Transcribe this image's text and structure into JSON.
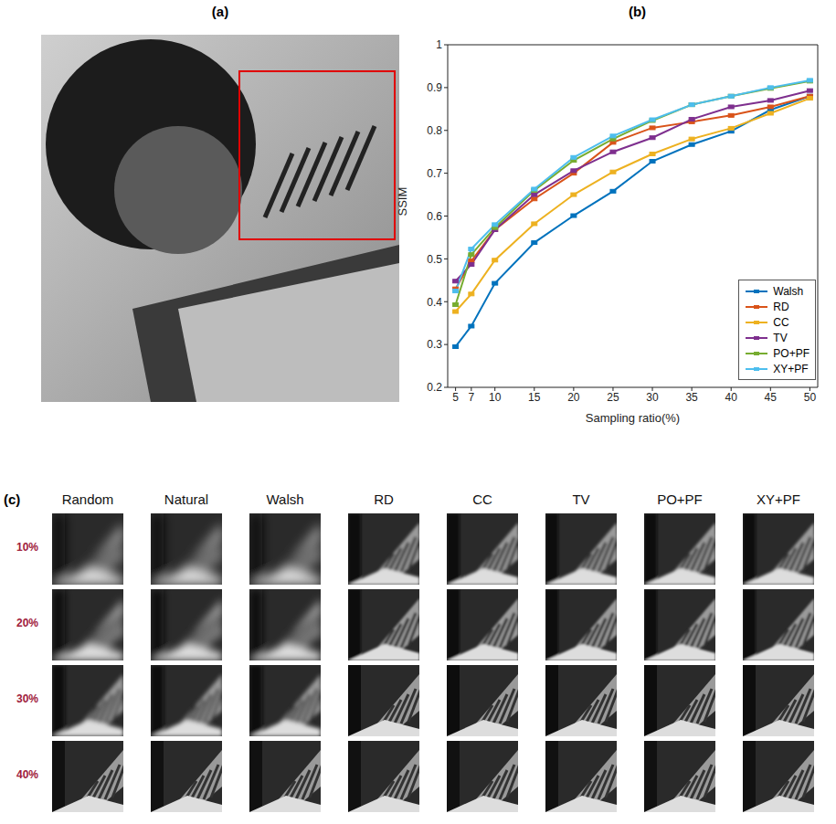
{
  "chart_data": {
    "type": "line",
    "title": "(b)",
    "x_label": "Sampling ratio(%)",
    "y_label": "SSIM",
    "x": [
      5,
      7,
      10,
      15,
      20,
      25,
      30,
      35,
      40,
      45,
      50
    ],
    "xlim": [
      4,
      51
    ],
    "xticks": [
      5,
      7,
      10,
      15,
      20,
      25,
      30,
      35,
      40,
      45,
      50
    ],
    "ylim": [
      0.2,
      1
    ],
    "yticks": [
      0.2,
      0.3,
      0.4,
      0.5,
      0.6,
      0.7,
      0.8,
      0.9,
      1
    ],
    "grid": false,
    "legend": "lower right",
    "series": [
      {
        "name": "Walsh",
        "color": "#0072BD",
        "marker": "square",
        "line_style": "solid",
        "values": [
          0.295,
          0.343,
          0.443,
          0.538,
          0.601,
          0.658,
          0.728,
          0.767,
          0.798,
          0.848,
          0.88
        ]
      },
      {
        "name": "RD",
        "color": "#D95319",
        "marker": "square",
        "line_style": "solid",
        "values": [
          0.43,
          0.495,
          0.568,
          0.64,
          0.7,
          0.772,
          0.806,
          0.82,
          0.835,
          0.855,
          0.88
        ]
      },
      {
        "name": "CC",
        "color": "#EDB120",
        "marker": "square",
        "line_style": "solid",
        "values": [
          0.377,
          0.418,
          0.497,
          0.582,
          0.65,
          0.703,
          0.745,
          0.78,
          0.805,
          0.84,
          0.875
        ]
      },
      {
        "name": "TV",
        "color": "#7E2F8E",
        "marker": "square",
        "line_style": "solid",
        "values": [
          0.448,
          0.487,
          0.568,
          0.65,
          0.706,
          0.75,
          0.783,
          0.826,
          0.855,
          0.87,
          0.893
        ]
      },
      {
        "name": "PO+PF",
        "color": "#77AC30",
        "marker": "square",
        "line_style": "solid",
        "values": [
          0.393,
          0.51,
          0.573,
          0.66,
          0.73,
          0.78,
          0.823,
          0.86,
          0.88,
          0.898,
          0.915
        ]
      },
      {
        "name": "XY+PF",
        "color": "#4DBEEE",
        "marker": "square",
        "line_style": "solid",
        "values": [
          0.425,
          0.523,
          0.58,
          0.663,
          0.737,
          0.787,
          0.825,
          0.86,
          0.88,
          0.9,
          0.917
        ]
      }
    ]
  },
  "figure": {
    "panel_a": {
      "label": "(a)"
    },
    "panel_c": {
      "label": "(c)",
      "columns": [
        "Random",
        "Natural",
        "Walsh",
        "RD",
        "CC",
        "TV",
        "PO+PF",
        "XY+PF"
      ],
      "rows": [
        "10%",
        "20%",
        "30%",
        "40%"
      ]
    }
  }
}
